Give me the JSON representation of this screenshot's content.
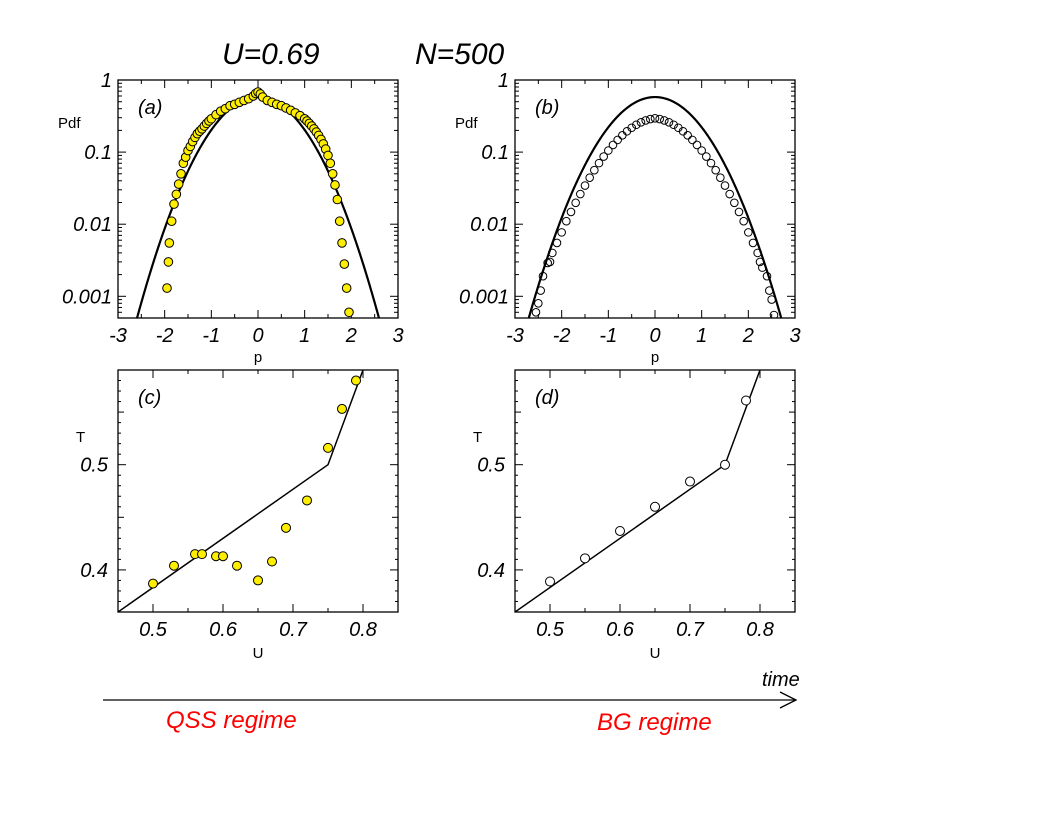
{
  "header": {
    "u_label": "U=0.69",
    "n_label": "N=500"
  },
  "footer": {
    "time_label": "time",
    "qss_label": "QSS regime",
    "bg_label": "BG regime",
    "regime_color": "#ff0000"
  },
  "chart_data": [
    {
      "id": "a",
      "type": "scatter",
      "panel_label": "(a)",
      "ylabel": "Pdf",
      "xlabel": "p",
      "yscale": "log",
      "xlim": [
        -3,
        3
      ],
      "ylim": [
        0.0005,
        1
      ],
      "xticks": [
        "-3",
        "-2",
        "-1",
        "0",
        "1",
        "2",
        "3"
      ],
      "yticks": [
        "1",
        "0.1",
        "0.01",
        "0.001"
      ],
      "marker_fill": "#ffee00",
      "points": {
        "x": [
          -1.95,
          -1.92,
          -1.9,
          -1.85,
          -1.8,
          -1.75,
          -1.7,
          -1.65,
          -1.6,
          -1.55,
          -1.5,
          -1.45,
          -1.4,
          -1.35,
          -1.3,
          -1.25,
          -1.2,
          -1.15,
          -1.1,
          -1.05,
          -1.0,
          -0.9,
          -0.8,
          -0.7,
          -0.6,
          -0.5,
          -0.4,
          -0.3,
          -0.2,
          -0.1,
          -0.05,
          0.0,
          0.05,
          0.1,
          0.2,
          0.3,
          0.4,
          0.5,
          0.6,
          0.7,
          0.8,
          0.9,
          1.0,
          1.05,
          1.1,
          1.15,
          1.2,
          1.25,
          1.3,
          1.35,
          1.4,
          1.45,
          1.5,
          1.55,
          1.6,
          1.65,
          1.7,
          1.75,
          1.8,
          1.85,
          1.9,
          1.95
        ],
        "y": [
          0.0013,
          0.003,
          0.0055,
          0.011,
          0.019,
          0.026,
          0.036,
          0.05,
          0.07,
          0.085,
          0.105,
          0.12,
          0.14,
          0.16,
          0.18,
          0.195,
          0.21,
          0.23,
          0.25,
          0.27,
          0.29,
          0.33,
          0.37,
          0.4,
          0.44,
          0.46,
          0.49,
          0.52,
          0.55,
          0.6,
          0.65,
          0.68,
          0.64,
          0.58,
          0.52,
          0.49,
          0.46,
          0.44,
          0.41,
          0.38,
          0.35,
          0.32,
          0.29,
          0.27,
          0.25,
          0.23,
          0.21,
          0.19,
          0.17,
          0.15,
          0.13,
          0.11,
          0.09,
          0.07,
          0.05,
          0.035,
          0.022,
          0.011,
          0.0055,
          0.0028,
          0.0013,
          0.0006
        ]
      },
      "curve": {
        "kind": "gaussian",
        "amplitude": 0.58,
        "sigma": 0.69
      }
    },
    {
      "id": "b",
      "type": "scatter",
      "panel_label": "(b)",
      "ylabel": "Pdf",
      "xlabel": "p",
      "yscale": "log",
      "xlim": [
        -3,
        3
      ],
      "ylim": [
        0.0005,
        1
      ],
      "xticks": [
        "-3",
        "-2",
        "-1",
        "0",
        "1",
        "2",
        "3"
      ],
      "yticks": [
        "1",
        "0.1",
        "0.01",
        "0.001"
      ],
      "marker_fill": "none",
      "points": {
        "x": [
          -2.55,
          -2.5,
          -2.45,
          -2.4,
          -2.3,
          -2.25,
          -2.2,
          -2.1,
          -2.0,
          -1.9,
          -1.8,
          -1.7,
          -1.6,
          -1.5,
          -1.4,
          -1.3,
          -1.2,
          -1.1,
          -1.0,
          -0.9,
          -0.8,
          -0.7,
          -0.6,
          -0.5,
          -0.4,
          -0.3,
          -0.2,
          -0.1,
          0.0,
          0.1,
          0.2,
          0.3,
          0.4,
          0.5,
          0.6,
          0.7,
          0.8,
          0.9,
          1.0,
          1.1,
          1.2,
          1.3,
          1.4,
          1.5,
          1.6,
          1.7,
          1.8,
          1.9,
          2.0,
          2.1,
          2.2,
          2.25,
          2.3,
          2.4,
          2.45,
          2.5,
          2.55
        ],
        "y": [
          0.0006,
          0.0008,
          0.0012,
          0.0019,
          0.0029,
          0.003,
          0.004,
          0.0055,
          0.0077,
          0.011,
          0.0148,
          0.0198,
          0.0262,
          0.0343,
          0.0442,
          0.0561,
          0.0703,
          0.0867,
          0.1052,
          0.1256,
          0.1477,
          0.1709,
          0.1945,
          0.2176,
          0.2394,
          0.2589,
          0.2751,
          0.2869,
          0.294,
          0.2869,
          0.2751,
          0.2589,
          0.2394,
          0.2176,
          0.1945,
          0.1709,
          0.1477,
          0.1256,
          0.1052,
          0.0867,
          0.0703,
          0.0561,
          0.0442,
          0.0343,
          0.0262,
          0.0198,
          0.0148,
          0.011,
          0.0077,
          0.0055,
          0.004,
          0.003,
          0.0025,
          0.0019,
          0.0012,
          0.0009,
          0.00055
        ]
      },
      "curve": {
        "kind": "gaussian",
        "amplitude": 0.58,
        "sigma": 0.72
      }
    },
    {
      "id": "c",
      "type": "scatter",
      "panel_label": "(c)",
      "ylabel": "T",
      "xlabel": "U",
      "xlim": [
        0.45,
        0.85
      ],
      "ylim": [
        0.36,
        0.59
      ],
      "xticks": [
        "0.5",
        "0.6",
        "0.7",
        "0.8"
      ],
      "xtick_values": [
        0.5,
        0.6,
        0.7,
        0.8
      ],
      "yticks": [
        "0.4",
        "0.5"
      ],
      "ytick_values": [
        0.4,
        0.5
      ],
      "marker_fill": "#ffee00",
      "points": {
        "x": [
          0.5,
          0.53,
          0.56,
          0.57,
          0.59,
          0.6,
          0.62,
          0.65,
          0.67,
          0.69,
          0.72,
          0.75,
          0.77,
          0.79
        ],
        "y": [
          0.387,
          0.404,
          0.415,
          0.415,
          0.413,
          0.413,
          0.404,
          0.39,
          0.408,
          0.44,
          0.466,
          0.516,
          0.553,
          0.58
        ]
      },
      "line": {
        "x": [
          0.45,
          0.75,
          0.8
        ],
        "y": [
          0.36,
          0.5,
          0.59
        ]
      }
    },
    {
      "id": "d",
      "type": "scatter",
      "panel_label": "(d)",
      "ylabel": "T",
      "xlabel": "U",
      "xlim": [
        0.45,
        0.85
      ],
      "ylim": [
        0.36,
        0.59
      ],
      "xticks": [
        "0.5",
        "0.6",
        "0.7",
        "0.8"
      ],
      "xtick_values": [
        0.5,
        0.6,
        0.7,
        0.8
      ],
      "yticks": [
        "0.4",
        "0.5"
      ],
      "ytick_values": [
        0.4,
        0.5
      ],
      "marker_fill": "#ffffff",
      "points": {
        "x": [
          0.5,
          0.55,
          0.6,
          0.65,
          0.7,
          0.75,
          0.78
        ],
        "y": [
          0.389,
          0.411,
          0.437,
          0.46,
          0.484,
          0.5,
          0.561
        ]
      },
      "line": {
        "x": [
          0.45,
          0.75,
          0.8
        ],
        "y": [
          0.36,
          0.5,
          0.59
        ]
      }
    }
  ]
}
